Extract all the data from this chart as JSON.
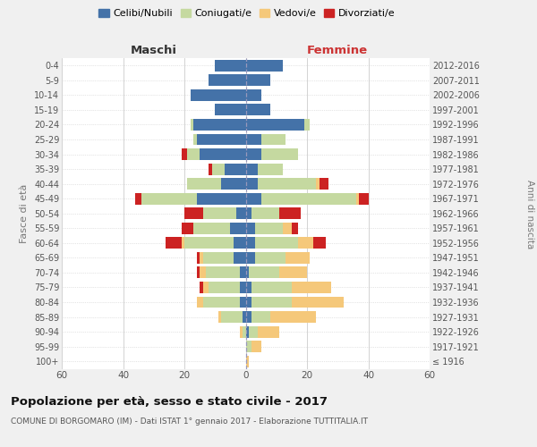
{
  "age_groups": [
    "100+",
    "95-99",
    "90-94",
    "85-89",
    "80-84",
    "75-79",
    "70-74",
    "65-69",
    "60-64",
    "55-59",
    "50-54",
    "45-49",
    "40-44",
    "35-39",
    "30-34",
    "25-29",
    "20-24",
    "15-19",
    "10-14",
    "5-9",
    "0-4"
  ],
  "birth_years": [
    "≤ 1916",
    "1917-1921",
    "1922-1926",
    "1927-1931",
    "1932-1936",
    "1937-1941",
    "1942-1946",
    "1947-1951",
    "1952-1956",
    "1957-1961",
    "1962-1966",
    "1967-1971",
    "1972-1976",
    "1977-1981",
    "1982-1986",
    "1987-1991",
    "1992-1996",
    "1997-2001",
    "2002-2006",
    "2007-2011",
    "2012-2016"
  ],
  "maschi": {
    "celibi": [
      0,
      0,
      0,
      1,
      2,
      2,
      2,
      4,
      4,
      5,
      3,
      16,
      8,
      7,
      15,
      16,
      17,
      10,
      18,
      12,
      10
    ],
    "coniugati": [
      0,
      0,
      1,
      7,
      12,
      10,
      11,
      10,
      16,
      12,
      11,
      18,
      11,
      4,
      4,
      1,
      1,
      0,
      0,
      0,
      0
    ],
    "vedovi": [
      0,
      0,
      1,
      1,
      2,
      2,
      2,
      1,
      1,
      0,
      0,
      0,
      0,
      0,
      0,
      0,
      0,
      0,
      0,
      0,
      0
    ],
    "divorziati": [
      0,
      0,
      0,
      0,
      0,
      1,
      1,
      1,
      5,
      4,
      6,
      2,
      0,
      1,
      2,
      0,
      0,
      0,
      0,
      0,
      0
    ]
  },
  "femmine": {
    "nubili": [
      0,
      0,
      1,
      2,
      2,
      2,
      1,
      3,
      3,
      3,
      2,
      5,
      4,
      4,
      5,
      5,
      19,
      8,
      5,
      8,
      12
    ],
    "coniugate": [
      0,
      2,
      3,
      6,
      13,
      13,
      10,
      10,
      14,
      9,
      9,
      31,
      19,
      8,
      12,
      8,
      2,
      0,
      0,
      0,
      0
    ],
    "vedove": [
      1,
      3,
      7,
      15,
      17,
      13,
      9,
      8,
      5,
      3,
      0,
      1,
      1,
      0,
      0,
      0,
      0,
      0,
      0,
      0,
      0
    ],
    "divorziate": [
      0,
      0,
      0,
      0,
      0,
      0,
      0,
      0,
      4,
      2,
      7,
      3,
      3,
      0,
      0,
      0,
      0,
      0,
      0,
      0,
      0
    ]
  },
  "colors": {
    "celibi": "#4472a8",
    "coniugati": "#c5d9a0",
    "vedovi": "#f5c87a",
    "divorziati": "#cc2222"
  },
  "xlim": 60,
  "title": "Popolazione per età, sesso e stato civile - 2017",
  "subtitle": "COMUNE DI BORGOMARO (IM) - Dati ISTAT 1° gennaio 2017 - Elaborazione TUTTITALIA.IT",
  "ylabel": "Fasce di età",
  "ylabel_right": "Anni di nascita",
  "xlabel_left": "Maschi",
  "xlabel_right": "Femmine",
  "background_color": "#f0f0f0",
  "plot_background": "#ffffff"
}
